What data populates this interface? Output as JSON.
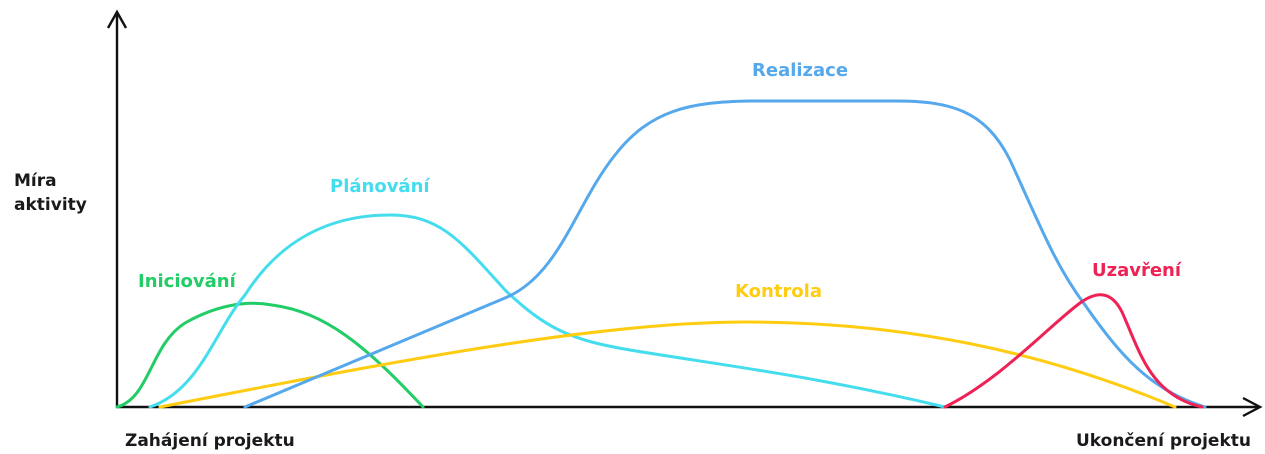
{
  "axes": {
    "y_label_line1": "Míra",
    "y_label_line2": "aktivity",
    "x_start_label": "Zahájení projektu",
    "x_end_label": "Ukončení projektu"
  },
  "phases": {
    "iniciovani": {
      "label": "Iniciování",
      "color": "#22cc66"
    },
    "planovani": {
      "label": "Plánování",
      "color": "#44ddee"
    },
    "realizace": {
      "label": "Realizace",
      "color": "#55a8ec"
    },
    "kontrola": {
      "label": "Kontrola",
      "color": "#ffcc11"
    },
    "uzavreni": {
      "label": "Uzavření",
      "color": "#ee2255"
    }
  },
  "colors": {
    "axis": "#111111",
    "text": "#1a1a1a",
    "background": "#ffffff"
  }
}
